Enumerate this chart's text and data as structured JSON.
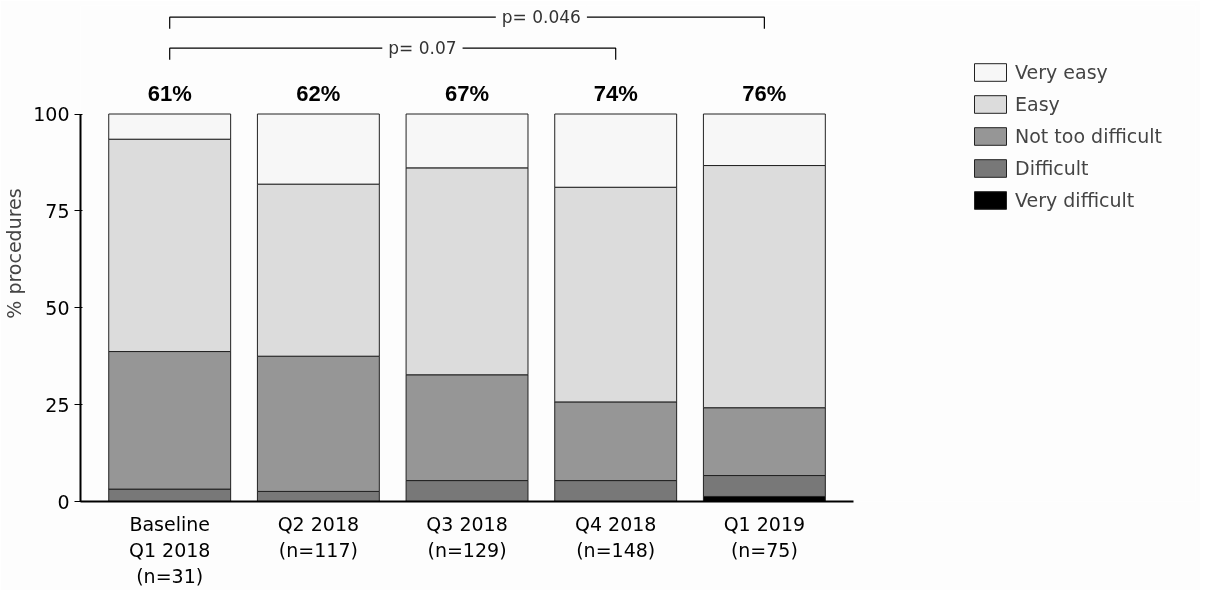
{
  "chart_data": {
    "type": "bar",
    "stacked": true,
    "ylabel": "% procedures",
    "categories": [
      "Baseline\nQ1 2018\n(n=31)",
      "Q2 2018\n(n=117)",
      "Q3 2018\n(n=129)",
      "Q4 2018\n(n=148)",
      "Q1 2019\n(n=75)"
    ],
    "series": [
      {
        "name": "Very difficult",
        "color": "#000000",
        "values": [
          0,
          0,
          0,
          0,
          1.3
        ]
      },
      {
        "name": "Difficult",
        "color": "#787878",
        "values": [
          3.2,
          2.6,
          5.4,
          5.4,
          5.4
        ]
      },
      {
        "name": "Not too difficult",
        "color": "#969696",
        "values": [
          35.5,
          34.9,
          27.3,
          20.3,
          17.5
        ]
      },
      {
        "name": "Easy",
        "color": "#dcdcdc",
        "values": [
          54.8,
          44.4,
          53.4,
          55.4,
          62.5
        ]
      },
      {
        "name": "Very easy",
        "color": "#f7f7f7",
        "values": [
          6.5,
          18.1,
          13.9,
          18.9,
          13.3
        ]
      }
    ],
    "annotations": [
      "p= 0.046",
      "p= 0.07",
      {
        "text": "61%",
        "x": "Baseline\nQ1 2018\n(n=31)",
        "y": 100
      },
      {
        "text": "62%",
        "x": "Q2 2018\n(n=117)",
        "y": 100
      },
      {
        "text": "67%",
        "x": "Q3 2018\n(n=129)",
        "y": 100
      },
      {
        "text": "74%",
        "x": "Q4 2018\n(n=148)",
        "y": 100
      },
      {
        "text": "76%",
        "x": "Q1 2019\n(n=75)",
        "y": 100
      }
    ],
    "ylim": [
      0,
      100
    ],
    "yticks": [
      0,
      25,
      50,
      75,
      100
    ],
    "grid": false,
    "legend": "right"
  }
}
